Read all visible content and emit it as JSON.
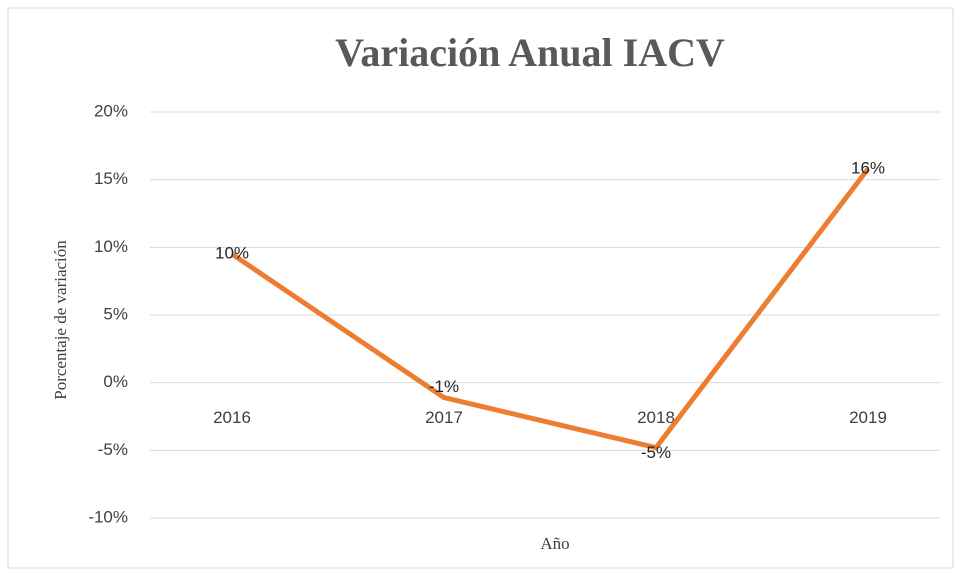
{
  "chart_data": {
    "type": "line",
    "title": "Variación Anual IACV",
    "x_label": "Año",
    "y_label": "Porcentaje  de  variación",
    "categories": [
      "2016",
      "2017",
      "2018",
      "2019"
    ],
    "series": [
      {
        "name": "Variación",
        "color": "#ed7d31",
        "values": [
          9.5,
          -1.1,
          -4.8,
          15.8
        ],
        "value_labels": [
          "10%",
          "-1%",
          "-5%",
          "16%"
        ]
      }
    ],
    "ylim": [
      -10,
      20
    ],
    "yticks": [
      {
        "value": -10,
        "label": "-10%"
      },
      {
        "value": -5,
        "label": "-5%"
      },
      {
        "value": 0,
        "label": "0%"
      },
      {
        "value": 5,
        "label": "5%"
      },
      {
        "value": 10,
        "label": "10%"
      },
      {
        "value": 15,
        "label": "15%"
      },
      {
        "value": 20,
        "label": "20%"
      }
    ],
    "grid": true
  }
}
